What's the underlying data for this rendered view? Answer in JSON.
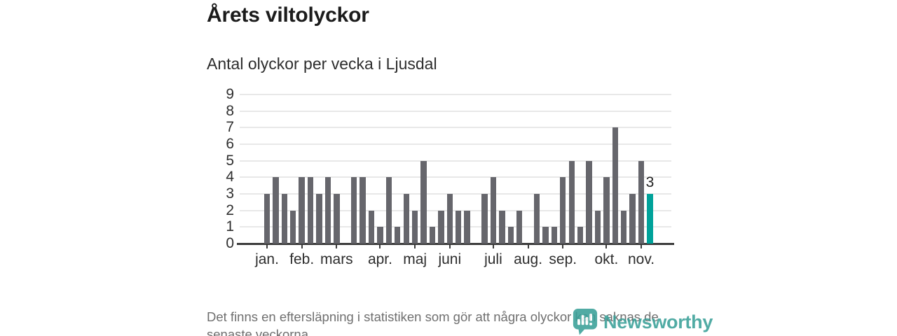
{
  "header": {
    "title": "Årets viltolyckor",
    "subtitle": "Antal olyckor per vecka i Ljusdal"
  },
  "chart_data": {
    "type": "bar",
    "title": "Årets viltolyckor",
    "subtitle": "Antal olyckor per vecka i Ljusdal",
    "ylabel": "",
    "xlabel": "",
    "ylim": [
      0,
      9
    ],
    "y_ticks": [
      0,
      1,
      2,
      3,
      4,
      5,
      6,
      7,
      8,
      9
    ],
    "grid": "horizontal",
    "categories_unit": "vecka",
    "values": [
      3,
      4,
      3,
      2,
      4,
      4,
      3,
      4,
      3,
      0,
      4,
      4,
      2,
      1,
      4,
      1,
      3,
      2,
      5,
      1,
      2,
      3,
      2,
      2,
      0,
      3,
      4,
      2,
      1,
      2,
      0,
      3,
      1,
      1,
      4,
      5,
      1,
      5,
      2,
      4,
      7,
      2,
      3,
      5,
      3
    ],
    "highlight_index": 44,
    "highlight_value_label": "3",
    "bar_color": "#66666c",
    "highlight_color": "#00a29a",
    "month_ticks": [
      {
        "label": "jan.",
        "week": 1
      },
      {
        "label": "feb.",
        "week": 5
      },
      {
        "label": "mars",
        "week": 9
      },
      {
        "label": "apr.",
        "week": 14
      },
      {
        "label": "maj",
        "week": 18
      },
      {
        "label": "juni",
        "week": 22
      },
      {
        "label": "juli",
        "week": 27
      },
      {
        "label": "aug.",
        "week": 31
      },
      {
        "label": "sep.",
        "week": 35
      },
      {
        "label": "okt.",
        "week": 40
      },
      {
        "label": "nov.",
        "week": 44
      }
    ]
  },
  "footer": {
    "note": "Det finns en eftersläpning i statistiken som gör att några olyckor kan saknas de senaste veckorna."
  },
  "branding": {
    "name": "Newsworthy",
    "logo_color": "#3aa098"
  }
}
